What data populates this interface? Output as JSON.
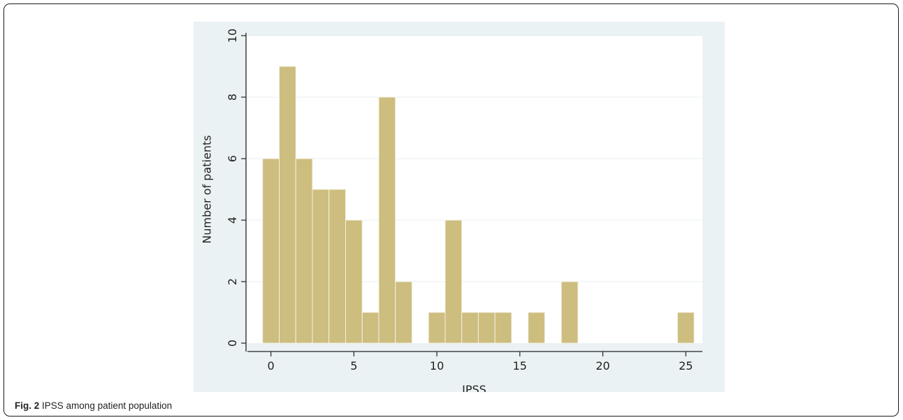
{
  "figure": {
    "label": "Fig. 2",
    "caption": "IPSS among patient population"
  },
  "chart_data": {
    "type": "bar",
    "xlabel": "IPSS",
    "ylabel": "Number of patients",
    "x": [
      0,
      1,
      2,
      3,
      4,
      5,
      6,
      7,
      8,
      10,
      11,
      12,
      13,
      14,
      16,
      18,
      25
    ],
    "values": [
      6,
      9,
      6,
      5,
      5,
      4,
      1,
      8,
      2,
      1,
      4,
      1,
      1,
      1,
      1,
      2,
      1
    ],
    "xlim": [
      -1.5,
      26
    ],
    "ylim": [
      0,
      10
    ],
    "xticks": [
      0,
      5,
      10,
      15,
      20,
      25
    ],
    "yticks": [
      0,
      2,
      4,
      6,
      8,
      10
    ],
    "grid": true,
    "legend": "none",
    "colors": {
      "bar_fill": "#cdbd7e",
      "bar_edge": "#f4f1e4",
      "plot_background": "#ffffff",
      "outer_background": "#eaf2f3",
      "gridline": "#e8eef0",
      "axis": "#222222"
    }
  }
}
